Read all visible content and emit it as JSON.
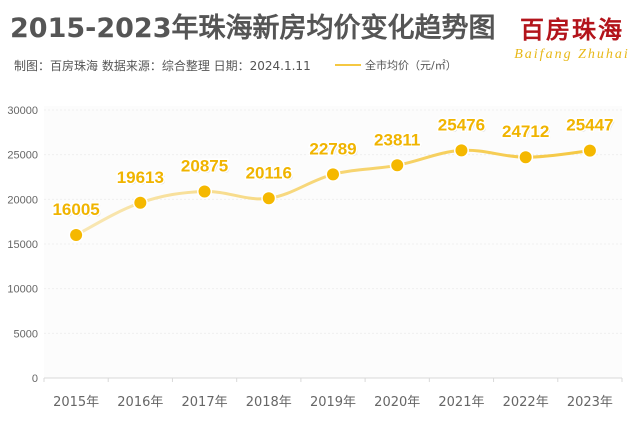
{
  "header": {
    "title": "2015-2023年珠海新房均价变化趋势图",
    "subtitle": "制图：百房珠海  数据来源：综合整理  日期：2024.1.11",
    "legend_label": "全市均价（元/㎡）"
  },
  "logo": {
    "cn": "百房珠海",
    "en": "Baifang Zhuhai"
  },
  "watermark": {
    "cn": "百房珠海",
    "en": "Baifang Zhuhai"
  },
  "colors": {
    "line": "#f5c842",
    "point": "#f5b800",
    "label": "#f0b400",
    "logo_red": "#b3141b"
  },
  "chart_data": {
    "type": "line",
    "title": "2015-2023年珠海新房均价变化趋势图",
    "xlabel": "",
    "ylabel": "",
    "categories": [
      "2015年",
      "2016年",
      "2017年",
      "2018年",
      "2019年",
      "2020年",
      "2021年",
      "2022年",
      "2023年"
    ],
    "series": [
      {
        "name": "全市均价（元/㎡）",
        "values": [
          16005,
          19613,
          20875,
          20116,
          22789,
          23811,
          25476,
          24712,
          25447
        ]
      }
    ],
    "yticks": [
      0,
      5000,
      10000,
      15000,
      20000,
      25000,
      30000
    ],
    "ylim": [
      0,
      30000
    ],
    "grid": true,
    "legend_position": "top",
    "data_labels": true
  }
}
